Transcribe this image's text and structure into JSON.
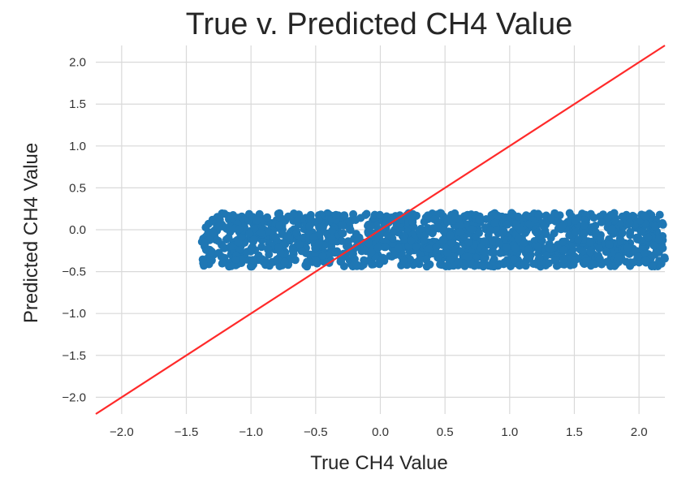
{
  "chart_data": {
    "type": "scatter",
    "title": "True v. Predicted CH4 Value",
    "xlabel": "True CH4 Value",
    "ylabel": "Predicted CH4 Value",
    "xlim": [
      -2.2,
      2.2
    ],
    "ylim": [
      -2.2,
      2.2
    ],
    "grid": true,
    "xticks": [
      -2.0,
      -1.5,
      -1.0,
      -0.5,
      0.0,
      0.5,
      1.0,
      1.5,
      2.0
    ],
    "yticks": [
      -2.0,
      -1.5,
      -1.0,
      -0.5,
      0.0,
      0.5,
      1.0,
      1.5,
      2.0
    ],
    "xtick_labels": [
      "−2.0",
      "−1.5",
      "−1.0",
      "−0.5",
      "0.0",
      "0.5",
      "1.0",
      "1.5",
      "2.0"
    ],
    "ytick_labels": [
      "−2.0",
      "−1.5",
      "−1.0",
      "−0.5",
      "0.0",
      "0.5",
      "1.0",
      "1.5",
      "2.0"
    ],
    "series": [
      {
        "name": "predictions",
        "kind": "scatter-band",
        "color": "#1f77b4",
        "x_range": [
          -1.38,
          2.2
        ],
        "y_center": -0.12,
        "y_spread": 0.32,
        "y_max": 0.28,
        "y_min": -0.5,
        "approx_points": 1400
      },
      {
        "name": "identity line",
        "kind": "line",
        "color": "#ff2a2a",
        "x": [
          -2.2,
          2.2
        ],
        "y": [
          -2.2,
          2.2
        ]
      }
    ]
  }
}
